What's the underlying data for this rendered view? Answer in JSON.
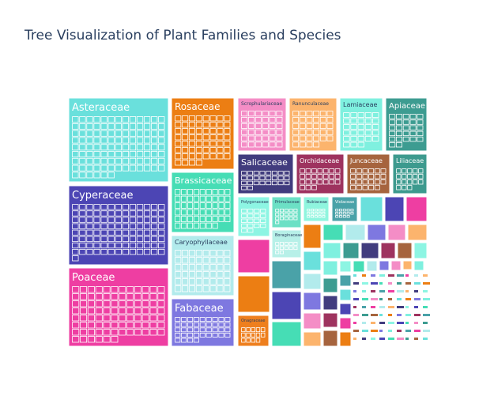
{
  "chart_data": {
    "type": "treemap",
    "title": "Tree Visualization of Plant Families and Species",
    "families": [
      {
        "name": "Asteraceae",
        "color": "#6ae0dc",
        "species_count": 110
      },
      {
        "name": "Cyperaceae",
        "color": "#4c45b4",
        "species_count": 105
      },
      {
        "name": "Poaceae",
        "color": "#ee3ea2",
        "species_count": 90
      },
      {
        "name": "Rosaceae",
        "color": "#ec7e13",
        "species_count": 60
      },
      {
        "name": "Brassicaceae",
        "color": "#46ddb5",
        "species_count": 52
      },
      {
        "name": "Caryophyllaceae",
        "color": "#b2ebec",
        "species_count": 48
      },
      {
        "name": "Fabaceae",
        "color": "#7e78e0",
        "species_count": 40
      },
      {
        "name": "Scrophulariaceae",
        "color": "#f48dc6",
        "species_count": 36
      },
      {
        "name": "Ranunculaceae",
        "color": "#fcb46d",
        "species_count": 34
      },
      {
        "name": "Lamiaceae",
        "color": "#7ff0df",
        "species_count": 28
      },
      {
        "name": "Apiaceae",
        "color": "#3d9c91",
        "species_count": 27
      },
      {
        "name": "Salicaceae",
        "color": "#413c7e",
        "species_count": 26
      },
      {
        "name": "Orchidaceae",
        "color": "#9e335f",
        "species_count": 24
      },
      {
        "name": "Juncaceae",
        "color": "#a6643e",
        "species_count": 23
      },
      {
        "name": "Liliaceae",
        "color": "#3d9a8e",
        "species_count": 18
      },
      {
        "name": "Polygonaceae",
        "color": "#8df5e3",
        "species_count": 18
      },
      {
        "name": "Primulaceae",
        "color": "#6ce0c5",
        "species_count": 16
      },
      {
        "name": "Rubiaceae",
        "color": "#8ff5de",
        "species_count": 15
      },
      {
        "name": "Violaceae",
        "color": "#4aa2a8",
        "species_count": 14
      },
      {
        "name": "Boraginaceae",
        "color": "#b7f0e8",
        "species_count": 12
      },
      {
        "name": "Onagraceae",
        "color": "#ee7f1e",
        "species_count": 14
      }
    ]
  }
}
